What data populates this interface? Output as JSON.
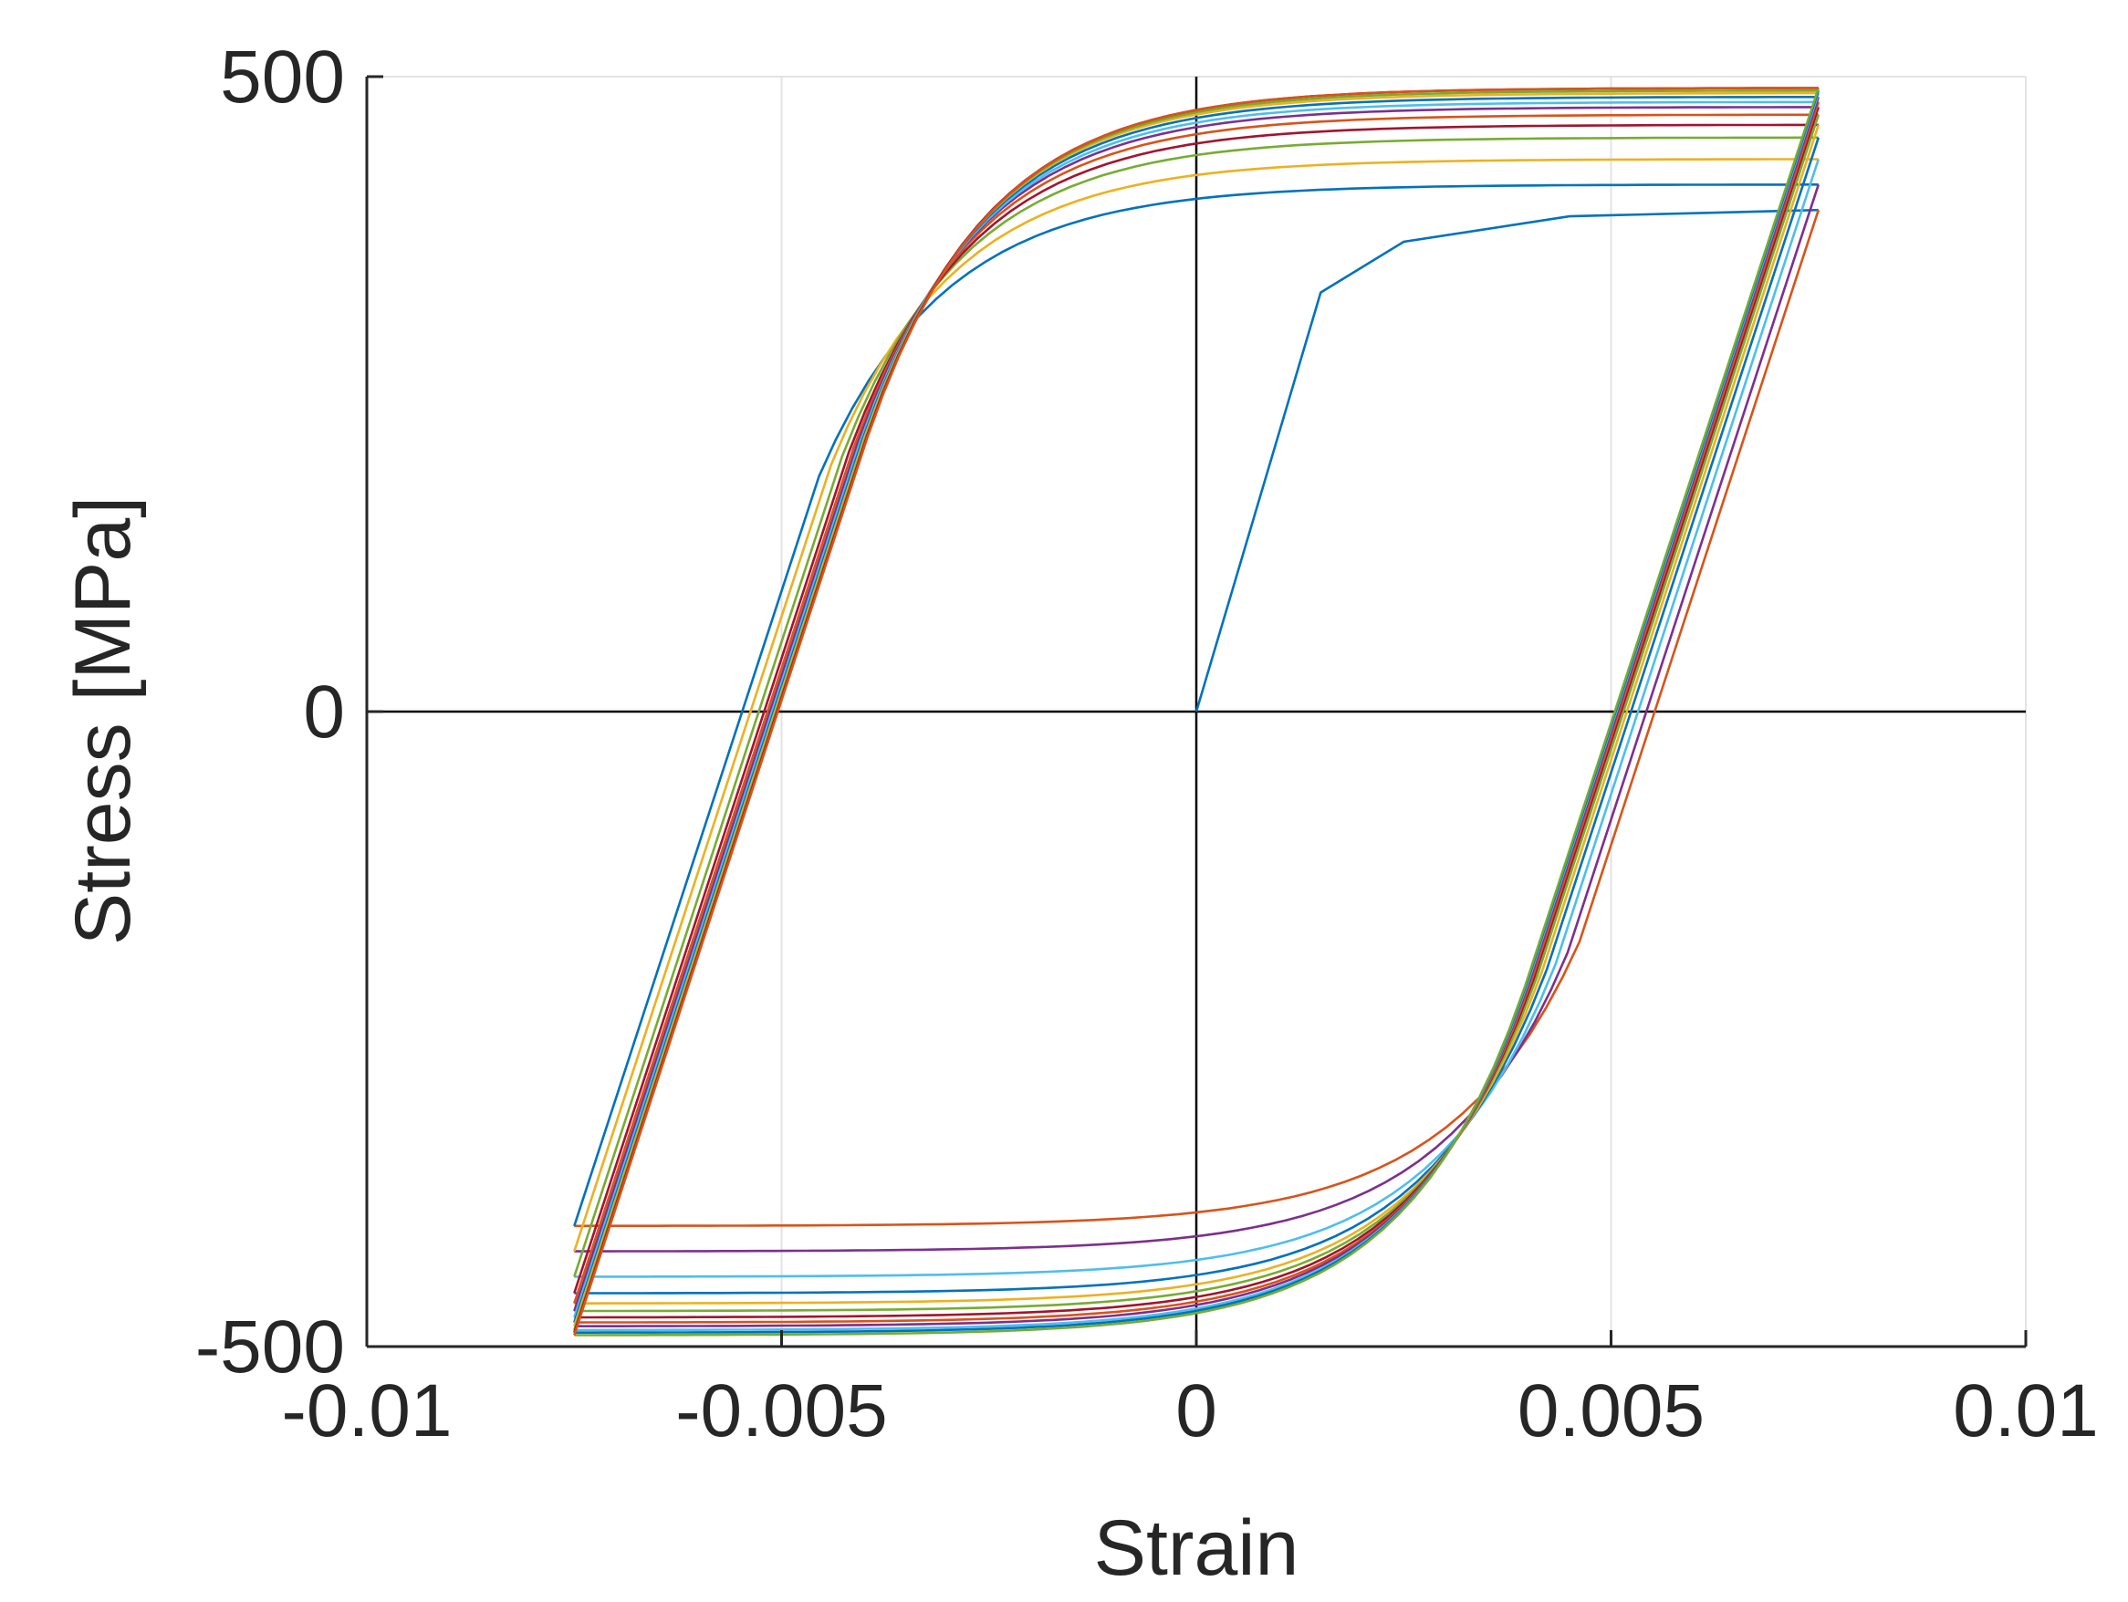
{
  "chart_data": {
    "type": "line",
    "title": "",
    "xlabel": "Strain",
    "ylabel": "Stress [MPa]",
    "xlim": [
      -0.01,
      0.01
    ],
    "ylim": [
      -500,
      500
    ],
    "xticks": [
      -0.01,
      -0.005,
      0,
      0.005,
      0.01
    ],
    "xtick_labels": [
      "-0.01",
      "-0.005",
      "0",
      "0.005",
      "0.01"
    ],
    "yticks": [
      -500,
      0,
      500
    ],
    "ytick_labels": [
      "-500",
      "0",
      "500"
    ],
    "grid": true,
    "legend": "none",
    "strain_amplitude": 0.0075,
    "colors": [
      "#0072BD",
      "#D95319",
      "#EDB120",
      "#7E2F8E",
      "#77AC30",
      "#4DBEEE",
      "#A2142F"
    ],
    "initial_loading": {
      "color": "#0072BD",
      "points": [
        [
          0,
          0
        ],
        [
          0.0015,
          330
        ],
        [
          0.0025,
          370
        ],
        [
          0.0045,
          390
        ],
        [
          0.0075,
          395
        ]
      ]
    },
    "cycles": [
      {
        "peak_stress": 395,
        "valley_stress": -405,
        "tension_color": "#0072BD",
        "compression_color": "#D95319"
      },
      {
        "peak_stress": 415,
        "valley_stress": -425,
        "tension_color": "#EDB120",
        "compression_color": "#7E2F8E"
      },
      {
        "peak_stress": 435,
        "valley_stress": -445,
        "tension_color": "#77AC30",
        "compression_color": "#4DBEEE"
      },
      {
        "peak_stress": 452,
        "valley_stress": -458,
        "tension_color": "#A2142F",
        "compression_color": "#0072BD"
      },
      {
        "peak_stress": 462,
        "valley_stress": -466,
        "tension_color": "#D95319",
        "compression_color": "#EDB120"
      },
      {
        "peak_stress": 470,
        "valley_stress": -472,
        "tension_color": "#7E2F8E",
        "compression_color": "#77AC30"
      },
      {
        "peak_stress": 476,
        "valley_stress": -477,
        "tension_color": "#4DBEEE",
        "compression_color": "#A2142F"
      },
      {
        "peak_stress": 480,
        "valley_stress": -481,
        "tension_color": "#0072BD",
        "compression_color": "#D95319"
      },
      {
        "peak_stress": 484,
        "valley_stress": -484,
        "tension_color": "#EDB120",
        "compression_color": "#7E2F8E"
      },
      {
        "peak_stress": 487,
        "valley_stress": -487,
        "tension_color": "#77AC30",
        "compression_color": "#4DBEEE"
      },
      {
        "peak_stress": 489,
        "valley_stress": -489,
        "tension_color": "#A2142F",
        "compression_color": "#0072BD"
      },
      {
        "peak_stress": 491,
        "valley_stress": -491,
        "tension_color": "#D95319",
        "compression_color": "#77AC30"
      }
    ]
  }
}
